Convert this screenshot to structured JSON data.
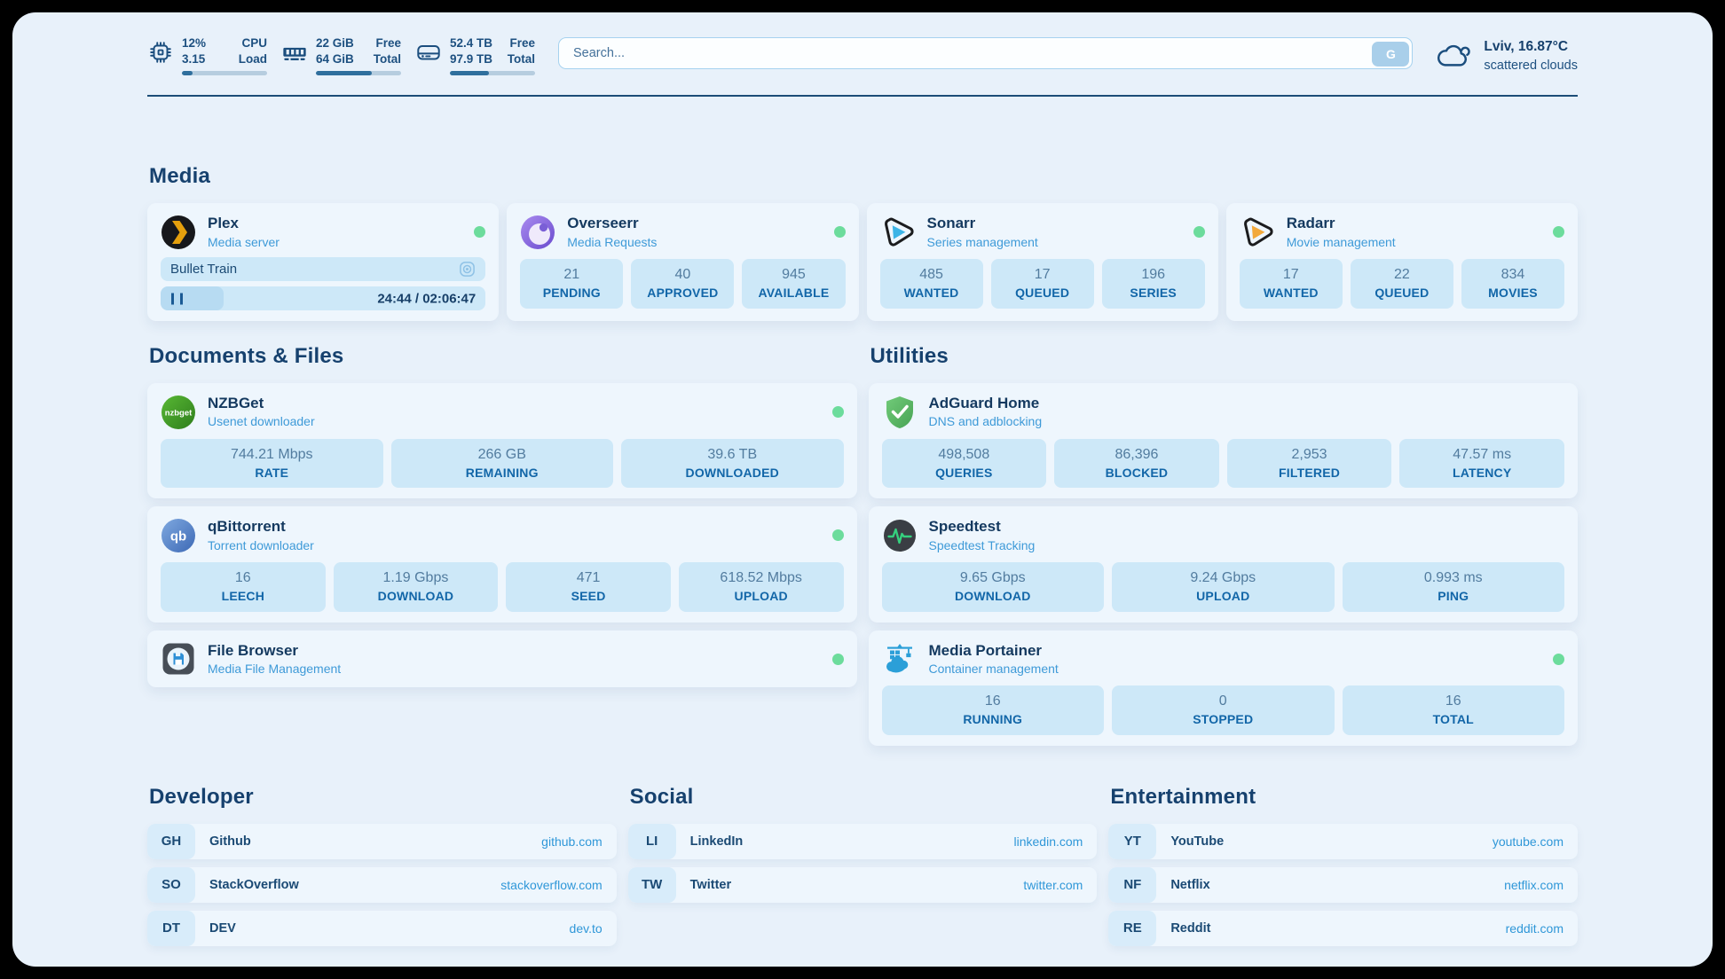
{
  "header": {
    "cpu": {
      "value1": "12%",
      "value2": "3.15",
      "label1": "CPU",
      "label2": "Load",
      "progress_pct": 12
    },
    "ram": {
      "value1": "22 GiB",
      "value2": "64 GiB",
      "label1": "Free",
      "label2": "Total",
      "progress_pct": 66
    },
    "disk": {
      "value1": "52.4 TB",
      "value2": "97.9 TB",
      "label1": "Free",
      "label2": "Total",
      "progress_pct": 46
    },
    "search": {
      "placeholder": "Search...",
      "button_label": "G"
    },
    "weather": {
      "location": "Lviv, 16.87°C",
      "condition": "scattered clouds"
    }
  },
  "colors": {
    "status_green": "#6cdc9c",
    "link_blue": "#2f97d8",
    "navy": "#16416e",
    "stat_bg": "#cde8f8"
  },
  "sections": {
    "media": {
      "title": "Media",
      "plex": {
        "name": "Plex",
        "desc": "Media server",
        "now_playing": "Bullet Train",
        "time": "24:44 / 02:06:47",
        "progress_pct": 19.5
      },
      "overseerr": {
        "name": "Overseerr",
        "desc": "Media Requests",
        "stats": [
          {
            "value": "21",
            "label": "PENDING"
          },
          {
            "value": "40",
            "label": "APPROVED"
          },
          {
            "value": "945",
            "label": "AVAILABLE"
          }
        ]
      },
      "sonarr": {
        "name": "Sonarr",
        "desc": "Series management",
        "stats": [
          {
            "value": "485",
            "label": "WANTED"
          },
          {
            "value": "17",
            "label": "QUEUED"
          },
          {
            "value": "196",
            "label": "SERIES"
          }
        ]
      },
      "radarr": {
        "name": "Radarr",
        "desc": "Movie management",
        "stats": [
          {
            "value": "17",
            "label": "WANTED"
          },
          {
            "value": "22",
            "label": "QUEUED"
          },
          {
            "value": "834",
            "label": "MOVIES"
          }
        ]
      }
    },
    "documents": {
      "title": "Documents & Files",
      "nzbget": {
        "name": "NZBGet",
        "desc": "Usenet downloader",
        "stats": [
          {
            "value": "744.21 Mbps",
            "label": "RATE"
          },
          {
            "value": "266 GB",
            "label": "REMAINING"
          },
          {
            "value": "39.6 TB",
            "label": "DOWNLOADED"
          }
        ]
      },
      "qbittorrent": {
        "name": "qBittorrent",
        "desc": "Torrent downloader",
        "stats": [
          {
            "value": "16",
            "label": "LEECH"
          },
          {
            "value": "1.19 Gbps",
            "label": "DOWNLOAD"
          },
          {
            "value": "471",
            "label": "SEED"
          },
          {
            "value": "618.52 Mbps",
            "label": "UPLOAD"
          }
        ]
      },
      "filebrowser": {
        "name": "File Browser",
        "desc": "Media File Management"
      }
    },
    "utilities": {
      "title": "Utilities",
      "adguard": {
        "name": "AdGuard Home",
        "desc": "DNS and adblocking",
        "stats": [
          {
            "value": "498,508",
            "label": "QUERIES"
          },
          {
            "value": "86,396",
            "label": "BLOCKED"
          },
          {
            "value": "2,953",
            "label": "FILTERED"
          },
          {
            "value": "47.57 ms",
            "label": "LATENCY"
          }
        ]
      },
      "speedtest": {
        "name": "Speedtest",
        "desc": "Speedtest Tracking",
        "stats": [
          {
            "value": "9.65 Gbps",
            "label": "DOWNLOAD"
          },
          {
            "value": "9.24 Gbps",
            "label": "UPLOAD"
          },
          {
            "value": "0.993 ms",
            "label": "PING"
          }
        ]
      },
      "portainer": {
        "name": "Media Portainer",
        "desc": "Container management",
        "stats": [
          {
            "value": "16",
            "label": "RUNNING"
          },
          {
            "value": "0",
            "label": "STOPPED"
          },
          {
            "value": "16",
            "label": "TOTAL"
          }
        ]
      }
    }
  },
  "bookmarks": {
    "developer": {
      "title": "Developer",
      "items": [
        {
          "abbr": "GH",
          "name": "Github",
          "url": "github.com"
        },
        {
          "abbr": "SO",
          "name": "StackOverflow",
          "url": "stackoverflow.com"
        },
        {
          "abbr": "DT",
          "name": "DEV",
          "url": "dev.to"
        }
      ]
    },
    "social": {
      "title": "Social",
      "items": [
        {
          "abbr": "LI",
          "name": "LinkedIn",
          "url": "linkedin.com"
        },
        {
          "abbr": "TW",
          "name": "Twitter",
          "url": "twitter.com"
        }
      ]
    },
    "entertainment": {
      "title": "Entertainment",
      "items": [
        {
          "abbr": "YT",
          "name": "YouTube",
          "url": "youtube.com"
        },
        {
          "abbr": "NF",
          "name": "Netflix",
          "url": "netflix.com"
        },
        {
          "abbr": "RE",
          "name": "Reddit",
          "url": "reddit.com"
        }
      ]
    }
  }
}
